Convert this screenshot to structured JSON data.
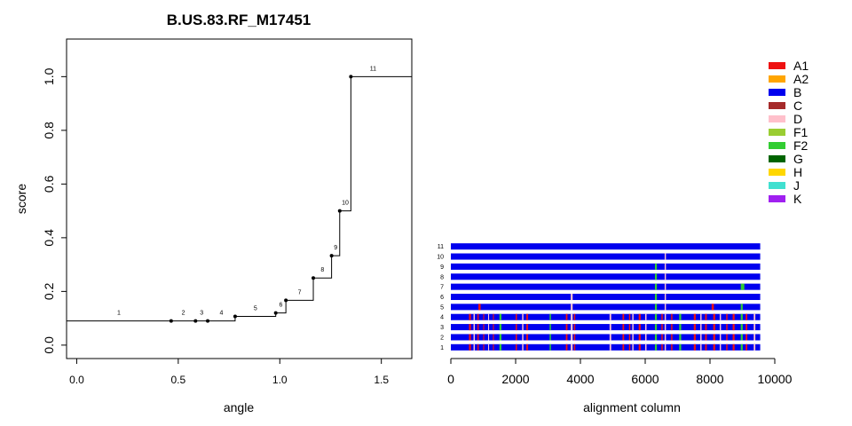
{
  "chart_data": [
    {
      "type": "line",
      "title": "B.US.83.RF_M17451",
      "xlabel": "angle",
      "ylabel": "score",
      "xlim": [
        -0.05,
        1.65
      ],
      "ylim": [
        -0.05,
        1.14
      ],
      "xticks": [
        0.0,
        0.5,
        1.0,
        1.5
      ],
      "xtick_labels": [
        "0.0",
        "0.5",
        "1.0",
        "1.5"
      ],
      "yticks": [
        0.0,
        0.2,
        0.4,
        0.6,
        0.8,
        1.0
      ],
      "ytick_labels": [
        "0.0",
        "0.2",
        "0.4",
        "0.6",
        "0.8",
        "1.0"
      ],
      "step_start_y": 0.09,
      "points": [
        {
          "label": "1",
          "x": 0.0,
          "y": 0.09
        },
        {
          "label": "2",
          "x": 0.465,
          "y": 0.09
        },
        {
          "label": "3",
          "x": 0.585,
          "y": 0.09
        },
        {
          "label": "4",
          "x": 0.645,
          "y": 0.09
        },
        {
          "label": "5",
          "x": 0.78,
          "y": 0.107
        },
        {
          "label": "6",
          "x": 0.98,
          "y": 0.12
        },
        {
          "label": "7",
          "x": 1.03,
          "y": 0.167
        },
        {
          "label": "8",
          "x": 1.165,
          "y": 0.25
        },
        {
          "label": "9",
          "x": 1.255,
          "y": 0.333
        },
        {
          "label": "10",
          "x": 1.295,
          "y": 0.5
        },
        {
          "label": "11",
          "x": 1.35,
          "y": 1.0
        }
      ]
    },
    {
      "type": "heatmap",
      "xlabel": "alignment column",
      "xlim": [
        0,
        10000
      ],
      "xticks": [
        0,
        2000,
        4000,
        6000,
        8000,
        10000
      ],
      "xtick_labels": [
        "0",
        "2000",
        "4000",
        "6000",
        "8000",
        "10000"
      ],
      "alignment_length": 9550,
      "base_subtype": "B",
      "sequence_labels": [
        "1",
        "2",
        "3",
        "4",
        "5",
        "6",
        "7",
        "8",
        "9",
        "10",
        "11"
      ],
      "sequences": [
        {
          "label": "1",
          "segments": [
            [
              560,
              620,
              "A1"
            ],
            [
              700,
              740,
              "D"
            ],
            [
              820,
              860,
              "A1"
            ],
            [
              1000,
              1030,
              "A1"
            ],
            [
              1150,
              1180,
              "D"
            ],
            [
              1300,
              1330,
              "A1"
            ],
            [
              1500,
              1560,
              "F2"
            ],
            [
              2000,
              2040,
              "A1"
            ],
            [
              2200,
              2240,
              "D"
            ],
            [
              2330,
              2380,
              "A1"
            ],
            [
              3050,
              3090,
              "F2"
            ],
            [
              3550,
              3600,
              "A1"
            ],
            [
              3700,
              3760,
              "D"
            ],
            [
              3800,
              3840,
              "A1"
            ],
            [
              4900,
              4950,
              "D"
            ],
            [
              5300,
              5350,
              "A1"
            ],
            [
              5500,
              5540,
              "A1"
            ],
            [
              5600,
              5640,
              "D"
            ],
            [
              5800,
              5860,
              "A1"
            ],
            [
              6000,
              6040,
              "D"
            ],
            [
              6300,
              6360,
              "F2"
            ],
            [
              6500,
              6540,
              "A1"
            ],
            [
              6600,
              6640,
              "D"
            ],
            [
              6800,
              6840,
              "A1"
            ],
            [
              7050,
              7110,
              "F2"
            ],
            [
              7500,
              7560,
              "A1"
            ],
            [
              7700,
              7740,
              "D"
            ],
            [
              7850,
              7900,
              "A1"
            ],
            [
              8100,
              8160,
              "A1"
            ],
            [
              8300,
              8340,
              "D"
            ],
            [
              8500,
              8540,
              "A1"
            ],
            [
              8700,
              8760,
              "A1"
            ],
            [
              8950,
              9010,
              "F2"
            ],
            [
              9100,
              9150,
              "A1"
            ],
            [
              9350,
              9400,
              "D"
            ]
          ]
        },
        {
          "label": "2",
          "segments": [
            [
              560,
              620,
              "A1"
            ],
            [
              700,
              740,
              "D"
            ],
            [
              820,
              860,
              "A1"
            ],
            [
              1000,
              1030,
              "A1"
            ],
            [
              1150,
              1180,
              "D"
            ],
            [
              1300,
              1330,
              "A1"
            ],
            [
              1500,
              1560,
              "F2"
            ],
            [
              2000,
              2040,
              "A1"
            ],
            [
              2200,
              2240,
              "D"
            ],
            [
              2330,
              2380,
              "A1"
            ],
            [
              3050,
              3090,
              "F2"
            ],
            [
              3550,
              3600,
              "A1"
            ],
            [
              3700,
              3760,
              "D"
            ],
            [
              3800,
              3840,
              "A1"
            ],
            [
              4900,
              4950,
              "D"
            ],
            [
              5300,
              5350,
              "A1"
            ],
            [
              5500,
              5540,
              "A1"
            ],
            [
              5600,
              5640,
              "D"
            ],
            [
              5800,
              5860,
              "A1"
            ],
            [
              6000,
              6040,
              "D"
            ],
            [
              6300,
              6360,
              "F2"
            ],
            [
              6500,
              6540,
              "A1"
            ],
            [
              6600,
              6640,
              "D"
            ],
            [
              6800,
              6840,
              "A1"
            ],
            [
              7050,
              7110,
              "F2"
            ],
            [
              7500,
              7560,
              "A1"
            ],
            [
              7700,
              7740,
              "D"
            ],
            [
              7850,
              7900,
              "A1"
            ],
            [
              8100,
              8160,
              "A1"
            ],
            [
              8300,
              8340,
              "D"
            ],
            [
              8500,
              8540,
              "A1"
            ],
            [
              8700,
              8760,
              "A1"
            ],
            [
              8950,
              9010,
              "F2"
            ],
            [
              9100,
              9150,
              "A1"
            ],
            [
              9350,
              9400,
              "D"
            ]
          ]
        },
        {
          "label": "3",
          "segments": [
            [
              560,
              620,
              "A1"
            ],
            [
              700,
              740,
              "D"
            ],
            [
              820,
              860,
              "A1"
            ],
            [
              1000,
              1030,
              "A1"
            ],
            [
              1150,
              1180,
              "D"
            ],
            [
              1300,
              1330,
              "A1"
            ],
            [
              1500,
              1560,
              "F2"
            ],
            [
              2000,
              2040,
              "A1"
            ],
            [
              2200,
              2240,
              "D"
            ],
            [
              2330,
              2380,
              "A1"
            ],
            [
              3050,
              3090,
              "F2"
            ],
            [
              3550,
              3600,
              "A1"
            ],
            [
              3700,
              3760,
              "D"
            ],
            [
              3800,
              3840,
              "A1"
            ],
            [
              4900,
              4950,
              "D"
            ],
            [
              5300,
              5350,
              "A1"
            ],
            [
              5500,
              5540,
              "A1"
            ],
            [
              5600,
              5640,
              "D"
            ],
            [
              5800,
              5860,
              "A1"
            ],
            [
              6000,
              6040,
              "D"
            ],
            [
              6300,
              6360,
              "F2"
            ],
            [
              6500,
              6540,
              "A1"
            ],
            [
              6600,
              6640,
              "D"
            ],
            [
              6800,
              6840,
              "A1"
            ],
            [
              7050,
              7110,
              "F2"
            ],
            [
              7500,
              7560,
              "A1"
            ],
            [
              7700,
              7740,
              "D"
            ],
            [
              7850,
              7900,
              "A1"
            ],
            [
              8100,
              8160,
              "A1"
            ],
            [
              8300,
              8340,
              "D"
            ],
            [
              8500,
              8540,
              "A1"
            ],
            [
              8700,
              8760,
              "A1"
            ],
            [
              8950,
              9010,
              "F2"
            ],
            [
              9100,
              9150,
              "A1"
            ],
            [
              9350,
              9400,
              "D"
            ]
          ]
        },
        {
          "label": "4",
          "segments": [
            [
              560,
              620,
              "A1"
            ],
            [
              700,
              740,
              "D"
            ],
            [
              820,
              860,
              "A1"
            ],
            [
              1000,
              1030,
              "A1"
            ],
            [
              1150,
              1180,
              "D"
            ],
            [
              1300,
              1330,
              "A1"
            ],
            [
              1500,
              1560,
              "F2"
            ],
            [
              2000,
              2040,
              "A1"
            ],
            [
              2200,
              2240,
              "D"
            ],
            [
              2330,
              2380,
              "A1"
            ],
            [
              3050,
              3090,
              "F2"
            ],
            [
              3550,
              3600,
              "A1"
            ],
            [
              3700,
              3760,
              "D"
            ],
            [
              3800,
              3840,
              "A1"
            ],
            [
              4900,
              4950,
              "D"
            ],
            [
              5300,
              5350,
              "A1"
            ],
            [
              5500,
              5540,
              "A1"
            ],
            [
              5600,
              5640,
              "D"
            ],
            [
              5800,
              5860,
              "A1"
            ],
            [
              6000,
              6040,
              "D"
            ],
            [
              6300,
              6360,
              "F2"
            ],
            [
              6500,
              6540,
              "A1"
            ],
            [
              6600,
              6640,
              "D"
            ],
            [
              6800,
              6840,
              "A1"
            ],
            [
              7050,
              7110,
              "F2"
            ],
            [
              7500,
              7560,
              "A1"
            ],
            [
              7700,
              7740,
              "D"
            ],
            [
              7850,
              7900,
              "A1"
            ],
            [
              8100,
              8160,
              "A1"
            ],
            [
              8300,
              8340,
              "D"
            ],
            [
              8500,
              8540,
              "A1"
            ],
            [
              8700,
              8760,
              "A1"
            ],
            [
              8950,
              9010,
              "F2"
            ],
            [
              9100,
              9150,
              "A1"
            ],
            [
              9350,
              9400,
              "D"
            ]
          ]
        },
        {
          "label": "5",
          "segments": [
            [
              850,
              920,
              "A1"
            ],
            [
              3700,
              3760,
              "D"
            ],
            [
              6300,
              6360,
              "F2"
            ],
            [
              6600,
              6640,
              "D"
            ],
            [
              8050,
              8120,
              "A1"
            ],
            [
              8950,
              9010,
              "F2"
            ]
          ]
        },
        {
          "label": "6",
          "segments": [
            [
              3700,
              3760,
              "D"
            ],
            [
              6300,
              6360,
              "F2"
            ],
            [
              6600,
              6640,
              "D"
            ]
          ]
        },
        {
          "label": "7",
          "segments": [
            [
              6300,
              6360,
              "F2"
            ],
            [
              6600,
              6640,
              "D"
            ],
            [
              8950,
              9060,
              "F2"
            ]
          ]
        },
        {
          "label": "8",
          "segments": [
            [
              6300,
              6360,
              "F2"
            ],
            [
              6600,
              6640,
              "D"
            ]
          ]
        },
        {
          "label": "9",
          "segments": [
            [
              6300,
              6360,
              "F2"
            ],
            [
              6600,
              6640,
              "D"
            ]
          ]
        },
        {
          "label": "10",
          "segments": [
            [
              6600,
              6640,
              "D"
            ]
          ]
        },
        {
          "label": "11",
          "segments": []
        }
      ]
    }
  ],
  "legend": {
    "placement": "right",
    "entries": [
      {
        "name": "A1",
        "color": "#ee1111"
      },
      {
        "name": "A2",
        "color": "#ffa500"
      },
      {
        "name": "B",
        "color": "#0000ee"
      },
      {
        "name": "C",
        "color": "#a52a2a"
      },
      {
        "name": "D",
        "color": "#ffc0cb"
      },
      {
        "name": "F1",
        "color": "#9acd32"
      },
      {
        "name": "F2",
        "color": "#32cd32"
      },
      {
        "name": "G",
        "color": "#006400"
      },
      {
        "name": "H",
        "color": "#ffd700"
      },
      {
        "name": "J",
        "color": "#40e0d0"
      },
      {
        "name": "K",
        "color": "#a020f0"
      }
    ]
  }
}
